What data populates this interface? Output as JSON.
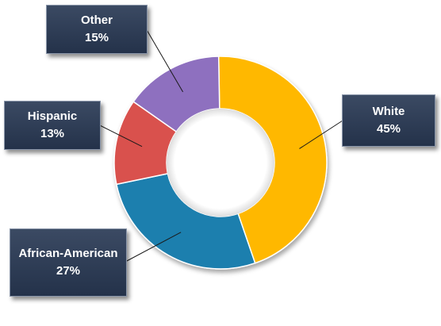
{
  "chart_data": {
    "type": "pie",
    "donut": true,
    "slices": [
      {
        "label": "White",
        "value": 45,
        "value_label": "45%",
        "color": "#FFB800"
      },
      {
        "label": "African-American",
        "value": 27,
        "value_label": "27%",
        "color": "#1F7FAE"
      },
      {
        "label": "Hispanic",
        "value": 13,
        "value_label": "13%",
        "color": "#D9514E"
      },
      {
        "label": "Other",
        "value": 15,
        "value_label": "15%",
        "color": "#8E6FBF"
      }
    ],
    "title": "",
    "legend": "none"
  }
}
